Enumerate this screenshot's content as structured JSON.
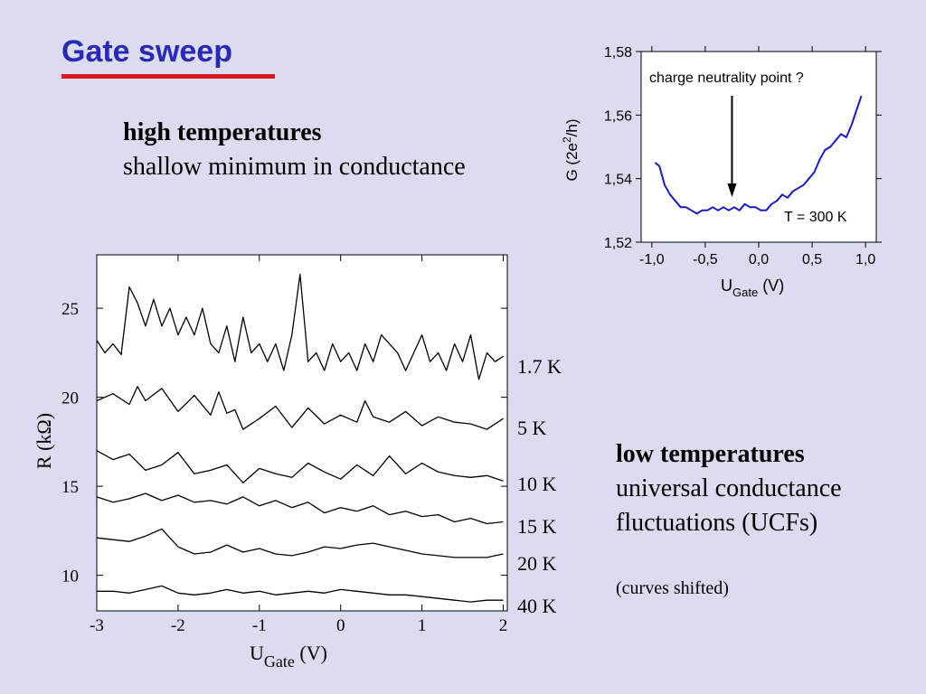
{
  "slide": {
    "title": "Gate sweep",
    "colors": {
      "title": "#2929b8",
      "rule": "#d71920",
      "background": "#dcdcf0",
      "inset_curve": "#1a1acc"
    }
  },
  "high_temp": {
    "heading": "high temperatures",
    "body": "shallow minimum in conductance"
  },
  "low_temp": {
    "heading": "low temperatures",
    "line1": "universal conductance",
    "line2": "fluctuations (UCFs)",
    "note": "(curves shifted)"
  },
  "chart_data": [
    {
      "type": "line",
      "title": "",
      "xlabel": "U_Gate (V)",
      "xlabel_main": "U",
      "xlabel_sub": "Gate",
      "xlabel_unit": "(V)",
      "ylabel": "R (kΩ)",
      "xlim": [
        -3,
        2.05
      ],
      "ylim": [
        8,
        28
      ],
      "xticks": [
        "-3",
        "-2",
        "-1",
        "0",
        "1",
        "2"
      ],
      "yticks": [
        "10",
        "15",
        "20",
        "25"
      ],
      "grid": false,
      "series": [
        {
          "name": "1.7 K",
          "x": [
            -3.0,
            -2.9,
            -2.8,
            -2.7,
            -2.6,
            -2.5,
            -2.4,
            -2.3,
            -2.2,
            -2.1,
            -2.0,
            -1.9,
            -1.8,
            -1.7,
            -1.6,
            -1.5,
            -1.4,
            -1.3,
            -1.2,
            -1.1,
            -1.0,
            -0.9,
            -0.8,
            -0.7,
            -0.6,
            -0.5,
            -0.45,
            -0.4,
            -0.3,
            -0.2,
            -0.1,
            0.0,
            0.1,
            0.2,
            0.3,
            0.4,
            0.5,
            0.6,
            0.7,
            0.8,
            0.9,
            1.0,
            1.1,
            1.2,
            1.3,
            1.4,
            1.5,
            1.6,
            1.7,
            1.8,
            1.9,
            2.0
          ],
          "y": [
            23.2,
            22.5,
            23.0,
            22.4,
            26.2,
            25.3,
            24.0,
            25.5,
            24.0,
            25.0,
            23.5,
            24.5,
            23.5,
            25.0,
            23.0,
            22.5,
            24.0,
            22.0,
            24.5,
            22.5,
            23.0,
            22.0,
            23.0,
            21.5,
            23.5,
            26.9,
            24.5,
            22.0,
            22.5,
            21.5,
            23.0,
            22.0,
            22.5,
            21.5,
            23.0,
            22.0,
            23.5,
            23.0,
            22.5,
            21.5,
            22.5,
            23.5,
            22.0,
            22.5,
            21.5,
            23.0,
            22.0,
            23.5,
            21.0,
            22.5,
            22.0,
            22.3
          ]
        },
        {
          "name": "5 K",
          "x": [
            -3.0,
            -2.8,
            -2.6,
            -2.5,
            -2.4,
            -2.2,
            -2.0,
            -1.8,
            -1.6,
            -1.5,
            -1.4,
            -1.3,
            -1.2,
            -1.0,
            -0.8,
            -0.6,
            -0.4,
            -0.2,
            0.0,
            0.2,
            0.3,
            0.4,
            0.6,
            0.8,
            1.0,
            1.2,
            1.4,
            1.6,
            1.8,
            2.0
          ],
          "y": [
            19.8,
            20.2,
            19.6,
            20.6,
            19.8,
            20.5,
            19.2,
            20.1,
            19.0,
            20.3,
            19.1,
            19.3,
            18.2,
            18.8,
            19.5,
            18.3,
            19.4,
            18.5,
            19.0,
            18.6,
            19.8,
            18.9,
            18.6,
            19.2,
            18.4,
            18.9,
            18.6,
            18.5,
            18.2,
            18.8
          ]
        },
        {
          "name": "10 K",
          "x": [
            -3.0,
            -2.8,
            -2.6,
            -2.4,
            -2.2,
            -2.0,
            -1.8,
            -1.6,
            -1.4,
            -1.2,
            -1.0,
            -0.8,
            -0.6,
            -0.4,
            -0.2,
            0.0,
            0.2,
            0.4,
            0.6,
            0.8,
            1.0,
            1.2,
            1.4,
            1.6,
            1.8,
            2.0
          ],
          "y": [
            17.0,
            16.5,
            16.8,
            15.9,
            16.2,
            16.9,
            15.7,
            15.9,
            16.2,
            15.2,
            16.0,
            15.7,
            15.5,
            16.3,
            15.8,
            15.4,
            16.2,
            15.6,
            16.7,
            15.7,
            16.3,
            15.8,
            15.6,
            15.5,
            15.6,
            15.3
          ]
        },
        {
          "name": "15 K",
          "x": [
            -3.0,
            -2.8,
            -2.6,
            -2.4,
            -2.2,
            -2.0,
            -1.8,
            -1.6,
            -1.4,
            -1.2,
            -1.0,
            -0.8,
            -0.6,
            -0.4,
            -0.2,
            0.0,
            0.2,
            0.4,
            0.6,
            0.8,
            1.0,
            1.2,
            1.4,
            1.6,
            1.8,
            2.0
          ],
          "y": [
            14.4,
            14.1,
            14.3,
            14.6,
            14.2,
            14.5,
            14.1,
            14.2,
            14.0,
            14.4,
            13.9,
            14.2,
            13.8,
            14.1,
            13.5,
            13.8,
            13.6,
            13.9,
            13.4,
            13.6,
            13.3,
            13.4,
            13.0,
            13.2,
            12.9,
            13.0
          ]
        },
        {
          "name": "20 K",
          "x": [
            -3.0,
            -2.8,
            -2.6,
            -2.4,
            -2.2,
            -2.0,
            -1.8,
            -1.6,
            -1.4,
            -1.2,
            -1.0,
            -0.8,
            -0.6,
            -0.4,
            -0.2,
            0.0,
            0.2,
            0.4,
            0.6,
            0.8,
            1.0,
            1.2,
            1.4,
            1.6,
            1.8,
            2.0
          ],
          "y": [
            12.1,
            12.0,
            11.9,
            12.2,
            12.6,
            11.6,
            11.2,
            11.3,
            11.7,
            11.3,
            11.5,
            11.2,
            11.1,
            11.3,
            11.6,
            11.5,
            11.7,
            11.8,
            11.6,
            11.4,
            11.2,
            11.1,
            11.0,
            11.0,
            11.0,
            11.2
          ]
        },
        {
          "name": "40 K",
          "x": [
            -3.0,
            -2.8,
            -2.6,
            -2.4,
            -2.2,
            -2.0,
            -1.8,
            -1.6,
            -1.4,
            -1.2,
            -1.0,
            -0.8,
            -0.6,
            -0.4,
            -0.2,
            0.0,
            0.2,
            0.4,
            0.6,
            0.8,
            1.0,
            1.2,
            1.4,
            1.6,
            1.8,
            2.0
          ],
          "y": [
            9.1,
            9.1,
            9.0,
            9.2,
            9.4,
            9.0,
            8.9,
            9.0,
            9.2,
            9.0,
            9.1,
            8.9,
            9.0,
            9.1,
            9.0,
            9.2,
            9.1,
            9.0,
            8.9,
            8.9,
            8.8,
            8.7,
            8.6,
            8.5,
            8.6,
            8.6
          ]
        }
      ]
    },
    {
      "type": "line",
      "title": "",
      "xlabel": "U_Gate (V)",
      "xlabel_main": "U",
      "xlabel_sub": "Gate",
      "xlabel_unit": "(V)",
      "ylabel": "G (2e²/h)",
      "ylabel_pre": "G (2e",
      "ylabel_sup": "2",
      "ylabel_post": "/h)",
      "xlim": [
        -1.1,
        1.1
      ],
      "ylim": [
        1.52,
        1.58
      ],
      "xticks": [
        "-1,0",
        "-0,5",
        "0,0",
        "0,5",
        "1,0"
      ],
      "yticks": [
        "1,52",
        "1,54",
        "1,56",
        "1,58"
      ],
      "grid": false,
      "annotation": "charge neutrality point ?",
      "annotation_arrow_x": -0.25,
      "temperature_label": "T = 300 K",
      "series": [
        {
          "name": "",
          "x": [
            -0.97,
            -0.93,
            -0.88,
            -0.83,
            -0.78,
            -0.73,
            -0.68,
            -0.63,
            -0.58,
            -0.53,
            -0.48,
            -0.43,
            -0.38,
            -0.33,
            -0.28,
            -0.23,
            -0.18,
            -0.13,
            -0.08,
            -0.03,
            0.02,
            0.07,
            0.12,
            0.17,
            0.22,
            0.27,
            0.32,
            0.37,
            0.42,
            0.47,
            0.52,
            0.57,
            0.62,
            0.67,
            0.72,
            0.77,
            0.82,
            0.87,
            0.92,
            0.96
          ],
          "y": [
            1.545,
            1.544,
            1.538,
            1.535,
            1.533,
            1.531,
            1.531,
            1.53,
            1.529,
            1.53,
            1.53,
            1.531,
            1.53,
            1.531,
            1.53,
            1.531,
            1.53,
            1.532,
            1.531,
            1.531,
            1.53,
            1.53,
            1.532,
            1.533,
            1.535,
            1.534,
            1.536,
            1.537,
            1.538,
            1.54,
            1.542,
            1.546,
            1.549,
            1.55,
            1.552,
            1.554,
            1.553,
            1.557,
            1.562,
            1.566
          ]
        }
      ]
    }
  ]
}
